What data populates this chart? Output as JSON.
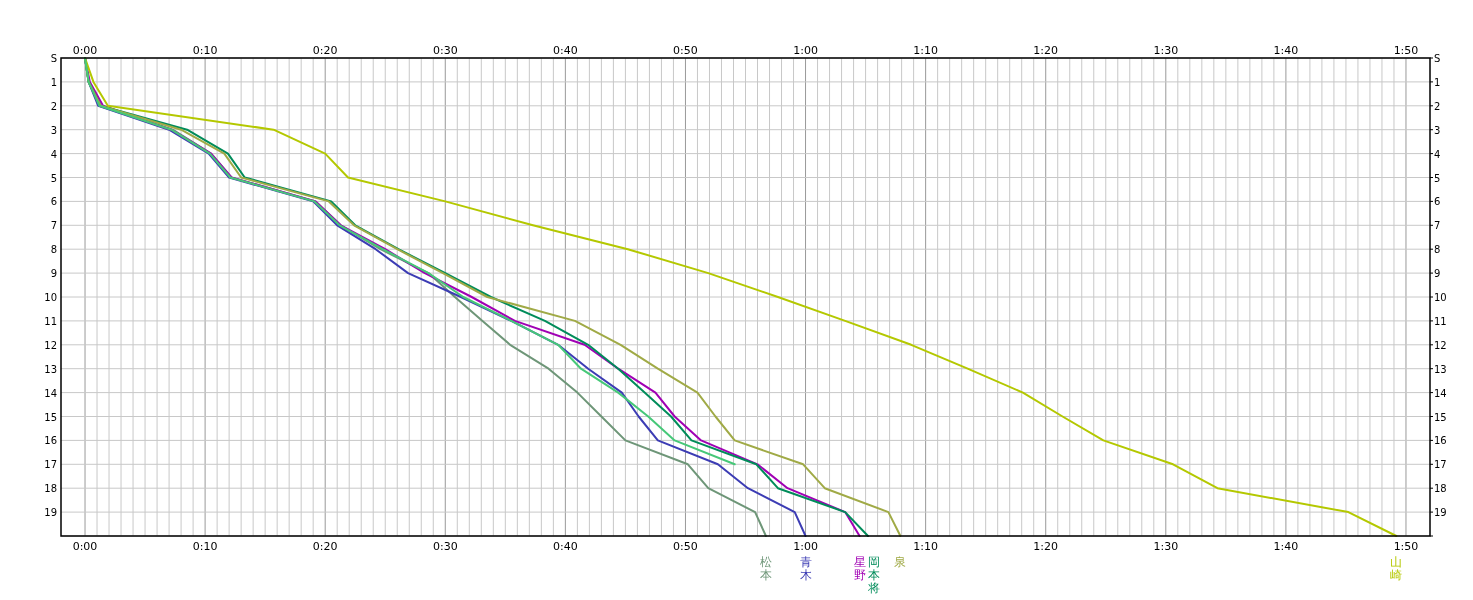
{
  "chart_data": {
    "type": "line",
    "grid": true,
    "xlim": [
      -2,
      112
    ],
    "ylim": [
      20,
      0
    ],
    "x2lim": [
      -2,
      112
    ],
    "y2lim": [
      20,
      0
    ],
    "xticks": [
      {
        "value": 0,
        "label": "0:00"
      },
      {
        "value": 1,
        "label": null
      },
      {
        "value": 2,
        "label": null
      },
      {
        "value": 3,
        "label": null
      },
      {
        "value": 4,
        "label": null
      },
      {
        "value": 5,
        "label": null
      },
      {
        "value": 6,
        "label": null
      },
      {
        "value": 7,
        "label": null
      },
      {
        "value": 8,
        "label": null
      },
      {
        "value": 9,
        "label": null
      },
      {
        "value": 10,
        "label": "0:10"
      },
      {
        "value": 11,
        "label": null
      },
      {
        "value": 12,
        "label": null
      },
      {
        "value": 13,
        "label": null
      },
      {
        "value": 14,
        "label": null
      },
      {
        "value": 15,
        "label": null
      },
      {
        "value": 16,
        "label": null
      },
      {
        "value": 17,
        "label": null
      },
      {
        "value": 18,
        "label": null
      },
      {
        "value": 19,
        "label": null
      },
      {
        "value": 20,
        "label": "0:20"
      },
      {
        "value": 21,
        "label": null
      },
      {
        "value": 22,
        "label": null
      },
      {
        "value": 23,
        "label": null
      },
      {
        "value": 24,
        "label": null
      },
      {
        "value": 25,
        "label": null
      },
      {
        "value": 26,
        "label": null
      },
      {
        "value": 27,
        "label": null
      },
      {
        "value": 28,
        "label": null
      },
      {
        "value": 29,
        "label": null
      },
      {
        "value": 30,
        "label": "0:30"
      },
      {
        "value": 31,
        "label": null
      },
      {
        "value": 32,
        "label": null
      },
      {
        "value": 33,
        "label": null
      },
      {
        "value": 34,
        "label": null
      },
      {
        "value": 35,
        "label": null
      },
      {
        "value": 36,
        "label": null
      },
      {
        "value": 37,
        "label": null
      },
      {
        "value": 38,
        "label": null
      },
      {
        "value": 39,
        "label": null
      },
      {
        "value": 40,
        "label": "0:40"
      },
      {
        "value": 41,
        "label": null
      },
      {
        "value": 42,
        "label": null
      },
      {
        "value": 43,
        "label": null
      },
      {
        "value": 44,
        "label": null
      },
      {
        "value": 45,
        "label": null
      },
      {
        "value": 46,
        "label": null
      },
      {
        "value": 47,
        "label": null
      },
      {
        "value": 48,
        "label": null
      },
      {
        "value": 49,
        "label": null
      },
      {
        "value": 50,
        "label": "0:50"
      },
      {
        "value": 51,
        "label": null
      },
      {
        "value": 52,
        "label": null
      },
      {
        "value": 53,
        "label": null
      },
      {
        "value": 54,
        "label": null
      },
      {
        "value": 55,
        "label": null
      },
      {
        "value": 56,
        "label": null
      },
      {
        "value": 57,
        "label": null
      },
      {
        "value": 58,
        "label": null
      },
      {
        "value": 59,
        "label": null
      },
      {
        "value": 60,
        "label": "1:00"
      },
      {
        "value": 61,
        "label": null
      },
      {
        "value": 62,
        "label": null
      },
      {
        "value": 63,
        "label": null
      },
      {
        "value": 64,
        "label": null
      },
      {
        "value": 65,
        "label": null
      },
      {
        "value": 66,
        "label": null
      },
      {
        "value": 67,
        "label": null
      },
      {
        "value": 68,
        "label": null
      },
      {
        "value": 69,
        "label": null
      },
      {
        "value": 70,
        "label": "1:10"
      },
      {
        "value": 71,
        "label": null
      },
      {
        "value": 72,
        "label": null
      },
      {
        "value": 73,
        "label": null
      },
      {
        "value": 74,
        "label": null
      },
      {
        "value": 75,
        "label": null
      },
      {
        "value": 76,
        "label": null
      },
      {
        "value": 77,
        "label": null
      },
      {
        "value": 78,
        "label": null
      },
      {
        "value": 79,
        "label": null
      },
      {
        "value": 80,
        "label": "1:20"
      },
      {
        "value": 81,
        "label": null
      },
      {
        "value": 82,
        "label": null
      },
      {
        "value": 83,
        "label": null
      },
      {
        "value": 84,
        "label": null
      },
      {
        "value": 85,
        "label": null
      },
      {
        "value": 86,
        "label": null
      },
      {
        "value": 87,
        "label": null
      },
      {
        "value": 88,
        "label": null
      },
      {
        "value": 89,
        "label": null
      },
      {
        "value": 90,
        "label": "1:30"
      },
      {
        "value": 91,
        "label": null
      },
      {
        "value": 92,
        "label": null
      },
      {
        "value": 93,
        "label": null
      },
      {
        "value": 94,
        "label": null
      },
      {
        "value": 95,
        "label": null
      },
      {
        "value": 96,
        "label": null
      },
      {
        "value": 97,
        "label": null
      },
      {
        "value": 98,
        "label": null
      },
      {
        "value": 99,
        "label": null
      },
      {
        "value": 100,
        "label": "1:40"
      },
      {
        "value": 101,
        "label": null
      },
      {
        "value": 102,
        "label": null
      },
      {
        "value": 103,
        "label": null
      },
      {
        "value": 104,
        "label": null
      },
      {
        "value": 105,
        "label": null
      },
      {
        "value": 106,
        "label": null
      },
      {
        "value": 107,
        "label": null
      },
      {
        "value": 108,
        "label": null
      },
      {
        "value": 109,
        "label": null
      },
      {
        "value": 110,
        "label": "1:50"
      }
    ],
    "x2ticks": [
      {
        "value": 0,
        "label": "0:00"
      },
      {
        "value": 10,
        "label": "0:10"
      },
      {
        "value": 20,
        "label": "0:20"
      },
      {
        "value": 30,
        "label": "0:30"
      },
      {
        "value": 40,
        "label": "0:40"
      },
      {
        "value": 50,
        "label": "0:50"
      },
      {
        "value": 60,
        "label": "1:00"
      },
      {
        "value": 70,
        "label": "1:10"
      },
      {
        "value": 80,
        "label": "1:20"
      },
      {
        "value": 90,
        "label": "1:30"
      },
      {
        "value": 100,
        "label": "1:40"
      },
      {
        "value": 110,
        "label": "1:50"
      }
    ],
    "yticks": [
      {
        "value": 0,
        "label": "S"
      },
      1,
      2,
      3,
      4,
      5,
      6,
      7,
      8,
      9,
      10,
      11,
      12,
      13,
      14,
      15,
      16,
      17,
      18,
      19,
      {
        "value": 20,
        "label": null
      }
    ],
    "y2ticks": [
      {
        "value": 0,
        "label": "S"
      },
      1,
      2,
      3,
      4,
      5,
      6,
      7,
      8,
      9,
      10,
      11,
      12,
      13,
      14,
      15,
      16,
      17,
      18,
      19,
      {
        "value": 20,
        "label": null
      }
    ],
    "series": [
      {
        "name": "松本",
        "color": "#6e9678",
        "x": [
          0,
          0.3,
          1.2,
          7.3,
          10.5,
          12.2,
          19.2,
          21.3,
          24.6,
          28.6,
          30.8,
          33.1,
          35.4,
          38.6,
          41,
          43,
          45,
          50.2,
          51.9,
          55.8,
          56.7
        ],
        "values": [
          0,
          1,
          2,
          3,
          4,
          5,
          6,
          7,
          8,
          9,
          10,
          11,
          12,
          13,
          14,
          15,
          16,
          17,
          18,
          19,
          20
        ]
      },
      {
        "name": "青木",
        "color": "#3c3cb4",
        "x": [
          0,
          0.3,
          1.1,
          7,
          10.3,
          12,
          19,
          21,
          24.2,
          26.9,
          31.3,
          35.5,
          39.4,
          41.9,
          44.7,
          46.1,
          47.7,
          52.7,
          55.2,
          59.1,
          60
        ],
        "values": [
          0,
          1,
          2,
          3,
          4,
          5,
          6,
          7,
          8,
          9,
          10,
          11,
          12,
          13,
          14,
          15,
          16,
          17,
          18,
          19,
          20
        ]
      },
      {
        "name": "星野",
        "color": "#a000b4",
        "x": [
          0,
          0.4,
          1.5,
          7.2,
          10.5,
          12.2,
          19.2,
          21.3,
          25,
          28.3,
          32.2,
          35.8,
          41.6,
          44.4,
          47.5,
          49.1,
          51.3,
          56,
          58.5,
          63.3,
          64.5
        ],
        "values": [
          0,
          1,
          2,
          3,
          4,
          5,
          6,
          7,
          8,
          9,
          10,
          11,
          12,
          13,
          14,
          15,
          16,
          17,
          18,
          19,
          20
        ]
      },
      {
        "name": "岡本将",
        "color": "#008c5a",
        "x": [
          0,
          0.3,
          1.3,
          8.5,
          11.9,
          13.3,
          20.5,
          22.5,
          26.1,
          30,
          33.8,
          38.3,
          41.9,
          44.4,
          46.6,
          48.8,
          50.5,
          55.9,
          57.7,
          63.3,
          65.2
        ],
        "values": [
          0,
          1,
          2,
          3,
          4,
          5,
          6,
          7,
          8,
          9,
          10,
          11,
          12,
          13,
          14,
          15,
          16,
          17,
          18,
          19,
          20
        ]
      },
      {
        "name": "泉",
        "color": "#a0aa46",
        "x": [
          0,
          0.3,
          1.3,
          8,
          11.6,
          13,
          20.3,
          22.4,
          26,
          29.8,
          33.5,
          40.8,
          44.6,
          47.7,
          51,
          52.5,
          54.1,
          59.8,
          61.6,
          66.9,
          67.9
        ],
        "values": [
          0,
          1,
          2,
          3,
          4,
          5,
          6,
          7,
          8,
          9,
          10,
          11,
          12,
          13,
          14,
          15,
          16,
          17,
          18,
          19,
          20
        ]
      },
      {
        "name": "山崎",
        "color": "#b4c800",
        "x": [
          0,
          0.7,
          1.9,
          15.7,
          20,
          21.9,
          30,
          37.3,
          45.2,
          51.9,
          57.7,
          63.3,
          68.8,
          73.5,
          78.1,
          81.4,
          84.8,
          90.6,
          94.3,
          105.2,
          109.2
        ],
        "values": [
          0,
          1,
          2,
          3,
          4,
          5,
          6,
          7,
          8,
          9,
          10,
          11,
          12,
          13,
          14,
          15,
          16,
          17,
          18,
          19,
          20
        ]
      },
      {
        "color": "#46c878",
        "x": [
          0,
          0.3,
          1.2,
          7.2,
          10.4,
          12.1,
          19.1,
          21.2,
          24.8,
          28.6,
          31.5,
          35.5,
          39.4,
          41.3,
          44.4,
          46.9,
          49.1,
          54.1
        ],
        "values": [
          0,
          1,
          2,
          3,
          4,
          5,
          6,
          7,
          8,
          9,
          10,
          11,
          12,
          13,
          14,
          15,
          16,
          17
        ]
      }
    ]
  }
}
